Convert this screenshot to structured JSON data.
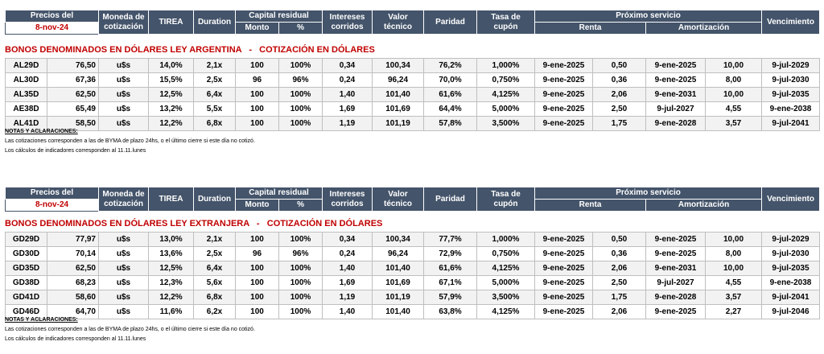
{
  "header": {
    "precios_del": "Precios del",
    "date": "8-nov-24",
    "moneda": "Moneda de",
    "cotizacion": "cotización",
    "tirea": "TIREA",
    "duration": "Duration",
    "capital_residual": "Capital residual",
    "monto": "Monto",
    "pct": "%",
    "intereses": "Intereses",
    "corridos": "corridos",
    "valor": "Valor",
    "tecnico": "técnico",
    "paridad": "Paridad",
    "tasa_de": "Tasa de",
    "cupon": "cupón",
    "proximo_servicio": "Próximo servicio",
    "renta": "Renta",
    "amortizacion": "Amortización",
    "vencimiento": "Vencimiento"
  },
  "notes": {
    "heading": "NOTAS Y ACLARACIONES:",
    "line1": "Las cotizaciones corresponden a las de BYMA de plazo 24hs, o el último cierre si este día no cotizó.",
    "line2": "Los cálculos de indicadores corresponden al 11.11.lunes"
  },
  "tables": [
    {
      "title": "BONOS DENOMINADOS EN DÓLARES LEY ARGENTINA   -   COTIZACIÓN EN DÓLARES",
      "rows": [
        [
          "AL29D",
          "76,50",
          "u$s",
          "14,0%",
          "2,1x",
          "100",
          "100%",
          "0,34",
          "100,34",
          "76,2%",
          "1,000%",
          "9-ene-2025",
          "0,50",
          "9-ene-2025",
          "10,00",
          "9-jul-2029"
        ],
        [
          "AL30D",
          "67,36",
          "u$s",
          "15,5%",
          "2,5x",
          "96",
          "96%",
          "0,24",
          "96,24",
          "70,0%",
          "0,750%",
          "9-ene-2025",
          "0,36",
          "9-ene-2025",
          "8,00",
          "9-jul-2030"
        ],
        [
          "AL35D",
          "62,50",
          "u$s",
          "12,5%",
          "6,4x",
          "100",
          "100%",
          "1,40",
          "101,40",
          "61,6%",
          "4,125%",
          "9-ene-2025",
          "2,06",
          "9-ene-2031",
          "10,00",
          "9-jul-2035"
        ],
        [
          "AE38D",
          "65,49",
          "u$s",
          "13,2%",
          "5,5x",
          "100",
          "100%",
          "1,69",
          "101,69",
          "64,4%",
          "5,000%",
          "9-ene-2025",
          "2,50",
          "9-jul-2027",
          "4,55",
          "9-ene-2038"
        ],
        [
          "AL41D",
          "58,50",
          "u$s",
          "12,2%",
          "6,8x",
          "100",
          "100%",
          "1,19",
          "101,19",
          "57,8%",
          "3,500%",
          "9-ene-2025",
          "1,75",
          "9-ene-2028",
          "3,57",
          "9-jul-2041"
        ]
      ]
    },
    {
      "title": "BONOS DENOMINADOS EN DÓLARES LEY EXTRANJERA   -   COTIZACIÓN EN DÓLARES",
      "rows": [
        [
          "GD29D",
          "77,97",
          "u$s",
          "13,0%",
          "2,1x",
          "100",
          "100%",
          "0,34",
          "100,34",
          "77,7%",
          "1,000%",
          "9-ene-2025",
          "0,50",
          "9-ene-2025",
          "10,00",
          "9-jul-2029"
        ],
        [
          "GD30D",
          "70,14",
          "u$s",
          "13,6%",
          "2,5x",
          "96",
          "96%",
          "0,24",
          "96,24",
          "72,9%",
          "0,750%",
          "9-ene-2025",
          "0,36",
          "9-ene-2025",
          "8,00",
          "9-jul-2030"
        ],
        [
          "GD35D",
          "62,50",
          "u$s",
          "12,5%",
          "6,4x",
          "100",
          "100%",
          "1,40",
          "101,40",
          "61,6%",
          "4,125%",
          "9-ene-2025",
          "2,06",
          "9-ene-2031",
          "10,00",
          "9-jul-2035"
        ],
        [
          "GD38D",
          "68,23",
          "u$s",
          "12,3%",
          "5,6x",
          "100",
          "100%",
          "1,69",
          "101,69",
          "67,1%",
          "5,000%",
          "9-ene-2025",
          "2,50",
          "9-jul-2027",
          "4,55",
          "9-ene-2038"
        ],
        [
          "GD41D",
          "58,60",
          "u$s",
          "12,2%",
          "6,8x",
          "100",
          "100%",
          "1,19",
          "101,19",
          "57,9%",
          "3,500%",
          "9-ene-2025",
          "1,75",
          "9-ene-2028",
          "3,57",
          "9-jul-2041"
        ],
        [
          "GD46D",
          "64,70",
          "u$s",
          "11,6%",
          "6,2x",
          "100",
          "100%",
          "1,40",
          "101,40",
          "63,8%",
          "4,125%",
          "9-ene-2025",
          "2,06",
          "9-ene-2025",
          "2,27",
          "9-jul-2046"
        ]
      ]
    }
  ]
}
